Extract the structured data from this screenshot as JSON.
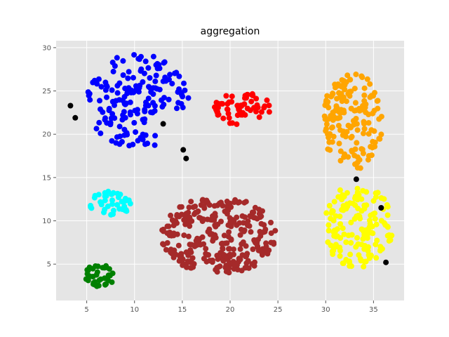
{
  "chart_data": {
    "type": "scatter",
    "title": "aggregation",
    "xlabel": "",
    "ylabel": "",
    "xlim": [
      1.8,
      38.2
    ],
    "ylim": [
      0.8,
      30.8
    ],
    "xticks": [
      5,
      10,
      15,
      20,
      25,
      30,
      35
    ],
    "yticks": [
      5,
      10,
      15,
      20,
      25,
      30
    ],
    "grid": true,
    "legend": false,
    "clusters": [
      {
        "color": "#0000ff",
        "shape": "blob",
        "cx": 10.3,
        "cy": 23.8,
        "rx": 5.4,
        "ry": 5.5,
        "count": 170,
        "seed": 11
      },
      {
        "color": "#ff0000",
        "shape": "ellipse",
        "cx": 21.4,
        "cy": 22.9,
        "rx": 3.1,
        "ry": 1.9,
        "count": 60,
        "seed": 23
      },
      {
        "color": "#ffa500",
        "shape": "ellipse",
        "cx": 32.8,
        "cy": 21.5,
        "rx": 3.2,
        "ry": 5.6,
        "count": 160,
        "seed": 37
      },
      {
        "color": "#00ffff",
        "shape": "ellipse",
        "cx": 7.5,
        "cy": 12.0,
        "rx": 2.2,
        "ry": 1.4,
        "count": 40,
        "seed": 41
      },
      {
        "color": "#a52a2a",
        "shape": "ellipse",
        "cx": 18.8,
        "cy": 8.3,
        "rx": 6.0,
        "ry": 4.5,
        "count": 300,
        "seed": 53
      },
      {
        "color": "#ffff00",
        "shape": "ellipse",
        "cx": 33.3,
        "cy": 9.4,
        "rx": 3.7,
        "ry": 4.8,
        "count": 150,
        "seed": 67
      },
      {
        "color": "#008000",
        "shape": "ellipse",
        "cx": 6.4,
        "cy": 3.7,
        "rx": 1.6,
        "ry": 1.3,
        "count": 40,
        "seed": 79
      }
    ],
    "points": [
      {
        "color": "#000000",
        "x": 3.3,
        "y": 23.3
      },
      {
        "color": "#000000",
        "x": 3.8,
        "y": 21.9
      },
      {
        "color": "#000000",
        "x": 13.0,
        "y": 21.2
      },
      {
        "color": "#000000",
        "x": 15.1,
        "y": 18.2
      },
      {
        "color": "#000000",
        "x": 15.4,
        "y": 17.2
      },
      {
        "color": "#000000",
        "x": 33.2,
        "y": 14.8
      },
      {
        "color": "#000000",
        "x": 35.8,
        "y": 11.5
      },
      {
        "color": "#000000",
        "x": 36.3,
        "y": 5.2
      }
    ]
  }
}
